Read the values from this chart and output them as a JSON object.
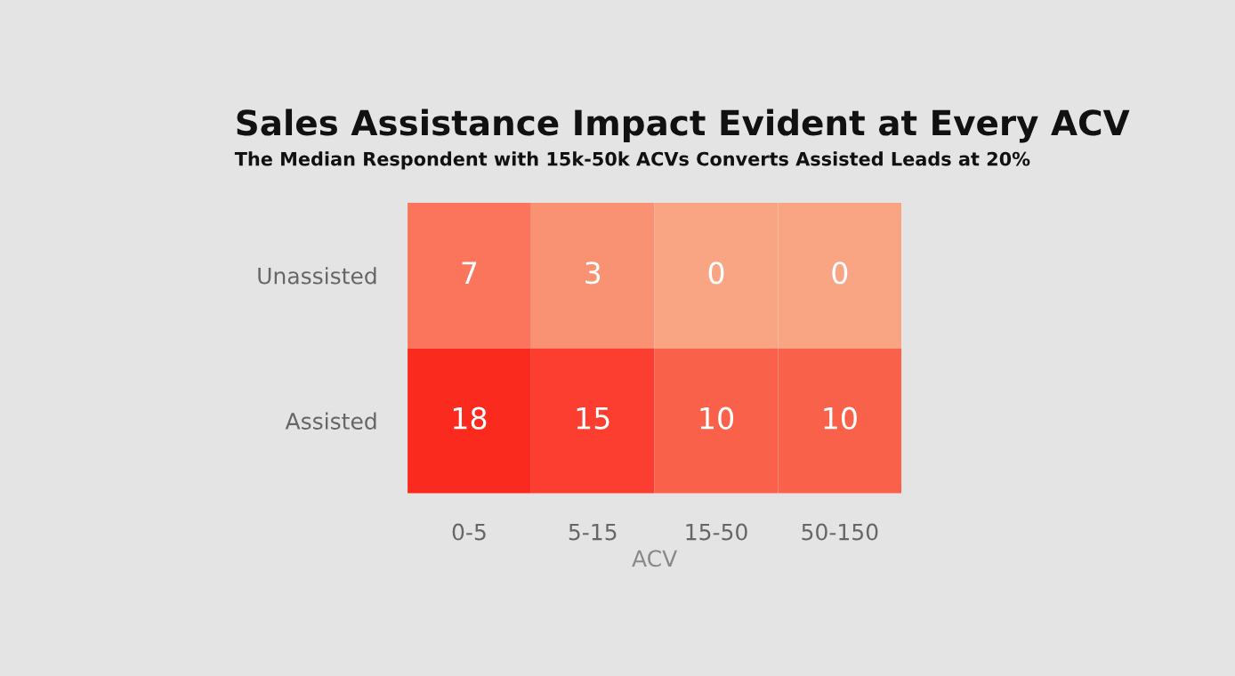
{
  "chart_data": {
    "type": "heatmap",
    "title": "Sales Assistance Impact Evident at Every ACV",
    "subtitle": "The Median Respondent with 15k-50k ACVs Converts Assisted Leads at 20%",
    "xlabel": "ACV",
    "categories": [
      "0-5",
      "5-15",
      "15-50",
      "50-150"
    ],
    "y_categories": [
      "Unassisted",
      "Assisted"
    ],
    "cells": [
      [
        7,
        3,
        0,
        0
      ],
      [
        18,
        15,
        10,
        10
      ]
    ],
    "colors": [
      "#f9a584",
      "#fb2a1e"
    ],
    "data_labels": true
  }
}
